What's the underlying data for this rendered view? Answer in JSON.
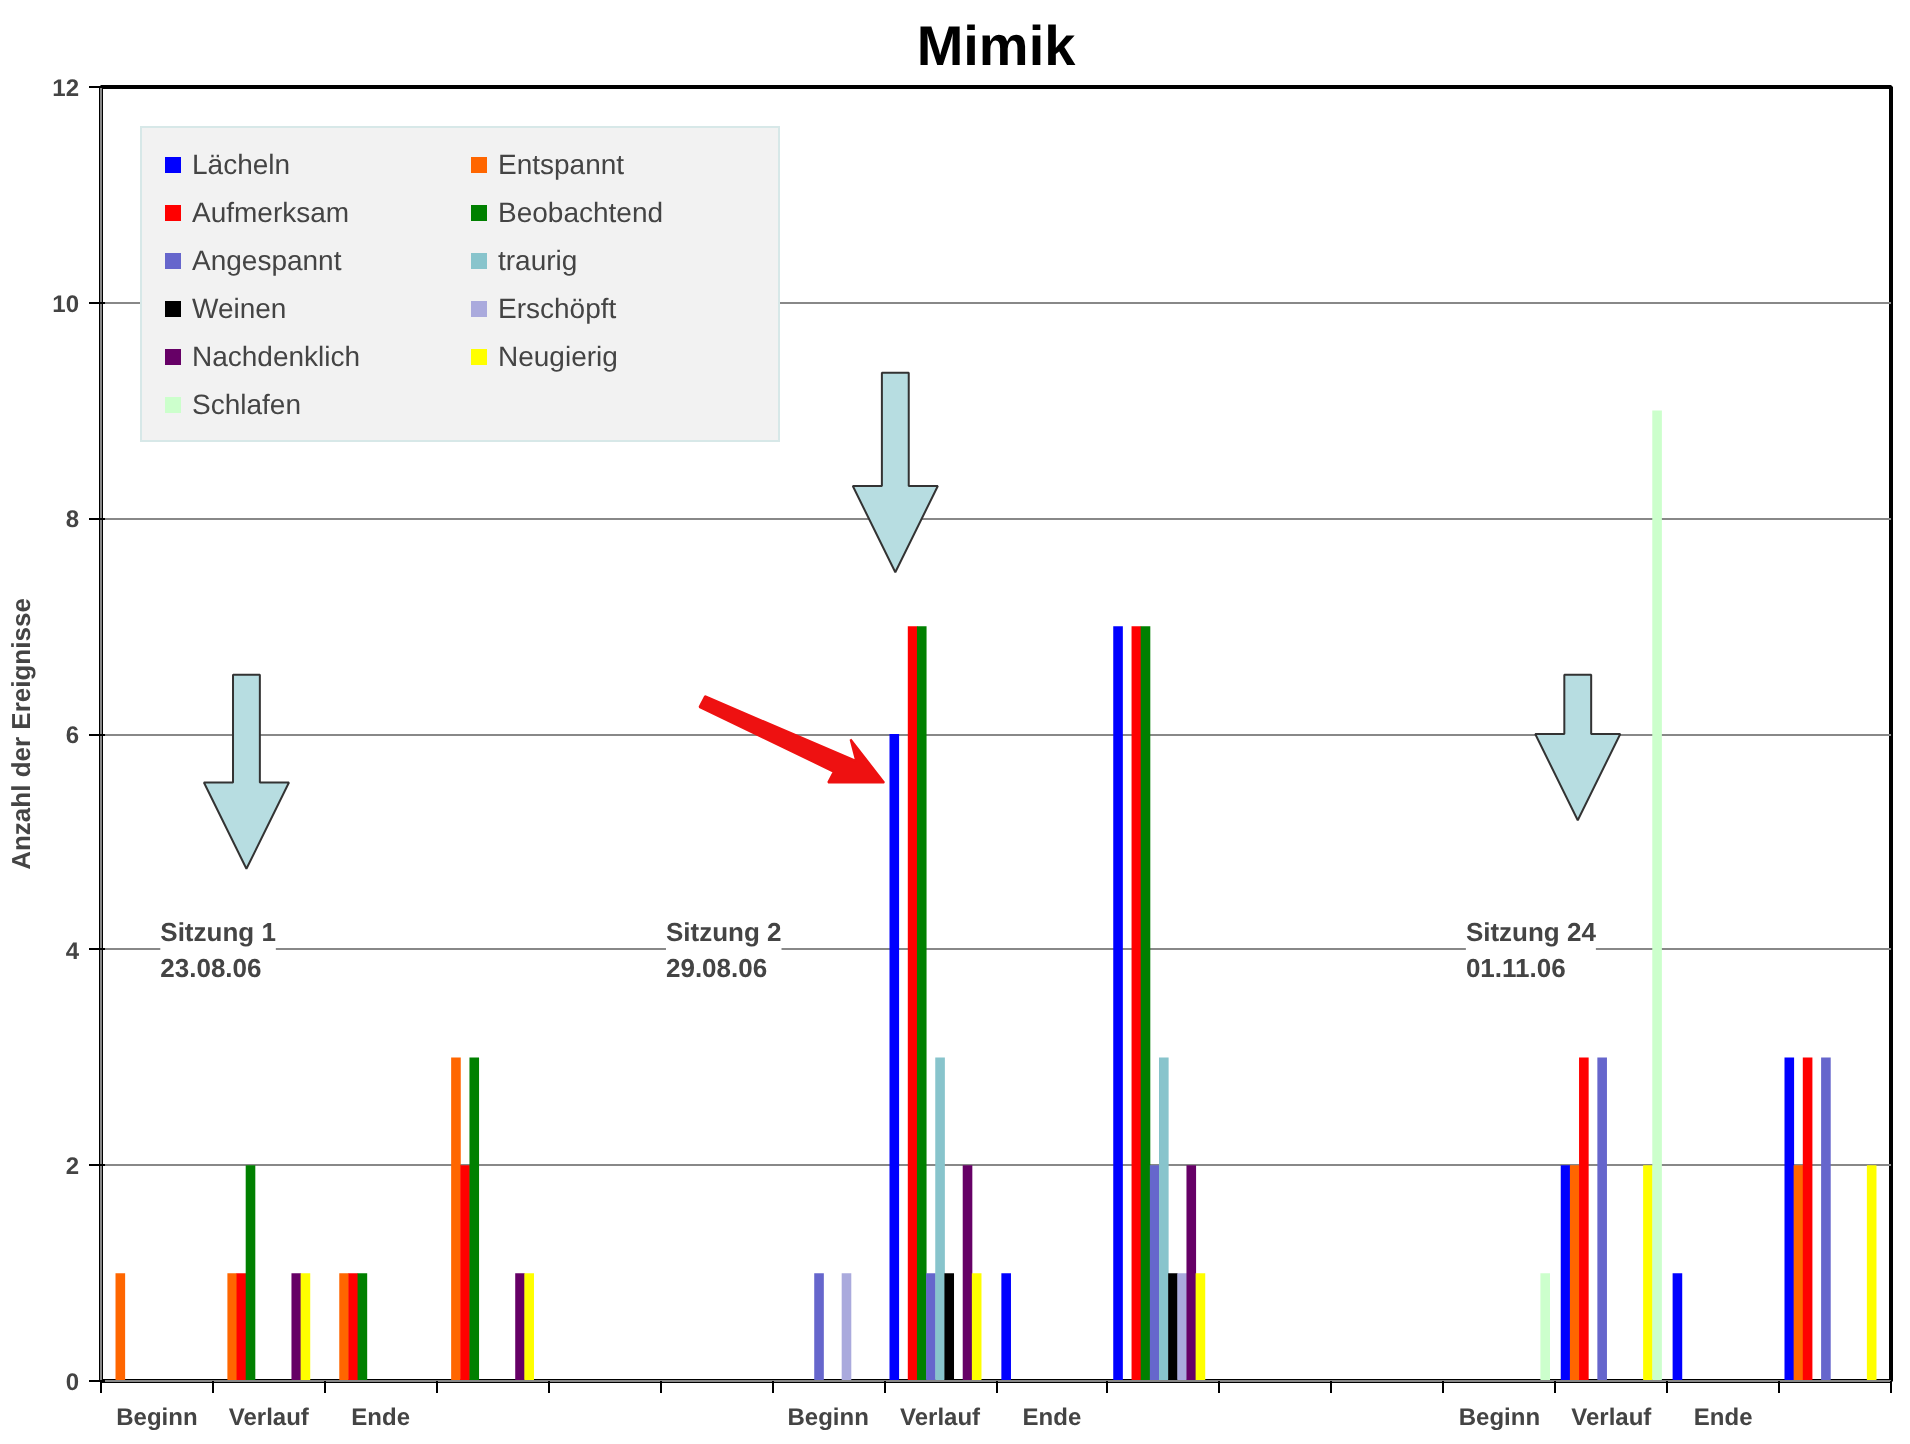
{
  "chart_data": {
    "type": "bar",
    "title": "Mimik",
    "ylabel": "Anzahl der Ereignisse",
    "categories": [
      "Beginn",
      "Verlauf",
      "Ende",
      null,
      null,
      null,
      "Beginn",
      "Verlauf",
      "Ende",
      null,
      null,
      null,
      "Beginn",
      "Verlauf",
      "Ende",
      null
    ],
    "series": [
      {
        "name": "Lächeln",
        "color": "#0000ff",
        "values": [
          0,
          0,
          0,
          0,
          0,
          0,
          0,
          6,
          1,
          7,
          0,
          0,
          0,
          2,
          1,
          3
        ]
      },
      {
        "name": "Entspannt",
        "color": "#ff6600",
        "values": [
          1,
          1,
          1,
          3,
          0,
          0,
          0,
          0,
          0,
          0,
          0,
          0,
          0,
          2,
          0,
          2
        ]
      },
      {
        "name": "Aufmerksam",
        "color": "#ff0000",
        "values": [
          0,
          1,
          1,
          2,
          0,
          0,
          0,
          7,
          0,
          7,
          0,
          0,
          0,
          3,
          0,
          3
        ]
      },
      {
        "name": "Beobachtend",
        "color": "#008000",
        "values": [
          0,
          2,
          1,
          3,
          0,
          0,
          0,
          7,
          0,
          7,
          0,
          0,
          0,
          0,
          0,
          0
        ]
      },
      {
        "name": "Angespannt",
        "color": "#6666cc",
        "values": [
          0,
          0,
          0,
          0,
          0,
          0,
          1,
          1,
          0,
          2,
          0,
          0,
          0,
          3,
          0,
          3
        ]
      },
      {
        "name": "traurig",
        "color": "#88c4cc",
        "values": [
          0,
          0,
          0,
          0,
          0,
          0,
          0,
          3,
          0,
          3,
          0,
          0,
          0,
          0,
          0,
          0
        ]
      },
      {
        "name": "Weinen",
        "color": "#000000",
        "values": [
          0,
          0,
          0,
          0,
          0,
          0,
          0,
          1,
          0,
          1,
          0,
          0,
          0,
          0,
          0,
          0
        ]
      },
      {
        "name": "Erschöpft",
        "color": "#aaaadd",
        "values": [
          0,
          0,
          0,
          0,
          0,
          0,
          1,
          0,
          0,
          1,
          0,
          0,
          0,
          0,
          0,
          0
        ]
      },
      {
        "name": "Nachdenklich",
        "color": "#660066",
        "values": [
          0,
          1,
          0,
          1,
          0,
          0,
          0,
          2,
          0,
          2,
          0,
          0,
          0,
          0,
          0,
          0
        ]
      },
      {
        "name": "Neugierig",
        "color": "#ffff00",
        "values": [
          0,
          1,
          0,
          1,
          0,
          0,
          0,
          1,
          0,
          1,
          0,
          0,
          0,
          2,
          0,
          2
        ]
      },
      {
        "name": "Schlafen",
        "color": "#ccffcc",
        "values": [
          0,
          0,
          0,
          0,
          0,
          0,
          0,
          0,
          0,
          0,
          0,
          0,
          1,
          9,
          0,
          0
        ]
      }
    ],
    "ylim": [
      0,
      12
    ],
    "yticks": [
      0,
      2,
      4,
      6,
      8,
      10,
      12
    ],
    "grid": "y",
    "legend": "top left",
    "annotations": [
      "Sitzung 1\n23.08.06",
      "Sitzung 2\n29.08.06",
      "Sitzung 24\n01.11.06"
    ]
  }
}
